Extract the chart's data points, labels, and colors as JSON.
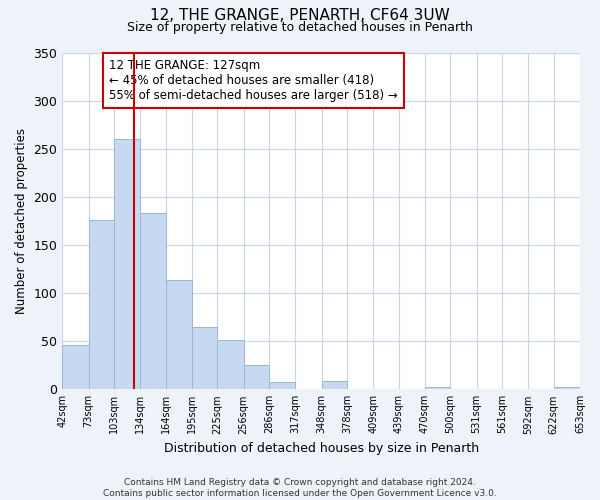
{
  "title": "12, THE GRANGE, PENARTH, CF64 3UW",
  "subtitle": "Size of property relative to detached houses in Penarth",
  "xlabel": "Distribution of detached houses by size in Penarth",
  "ylabel": "Number of detached properties",
  "bar_edges": [
    42,
    73,
    103,
    134,
    164,
    195,
    225,
    256,
    286,
    317,
    348,
    378,
    409,
    439,
    470,
    500,
    531,
    561,
    592,
    622,
    653
  ],
  "bar_heights": [
    46,
    176,
    260,
    183,
    114,
    65,
    51,
    25,
    8,
    0,
    9,
    0,
    0,
    0,
    2,
    0,
    0,
    0,
    0,
    2
  ],
  "bar_color": "#c6d9f1",
  "bar_edge_color": "#9ab5d8",
  "vline_x": 127,
  "vline_color": "#cc0000",
  "annotation_line1": "12 THE GRANGE: 127sqm",
  "annotation_line2": "← 45% of detached houses are smaller (418)",
  "annotation_line3": "55% of semi-detached houses are larger (518) →",
  "ylim": [
    0,
    350
  ],
  "yticks": [
    0,
    50,
    100,
    150,
    200,
    250,
    300,
    350
  ],
  "tick_labels": [
    "42sqm",
    "73sqm",
    "103sqm",
    "134sqm",
    "164sqm",
    "195sqm",
    "225sqm",
    "256sqm",
    "286sqm",
    "317sqm",
    "348sqm",
    "378sqm",
    "409sqm",
    "439sqm",
    "470sqm",
    "500sqm",
    "531sqm",
    "561sqm",
    "592sqm",
    "622sqm",
    "653sqm"
  ],
  "footer_text": "Contains HM Land Registry data © Crown copyright and database right 2024.\nContains public sector information licensed under the Open Government Licence v3.0.",
  "bg_color": "#eef2f9",
  "plot_bg_color": "#ffffff",
  "grid_color": "#c8d4e8"
}
